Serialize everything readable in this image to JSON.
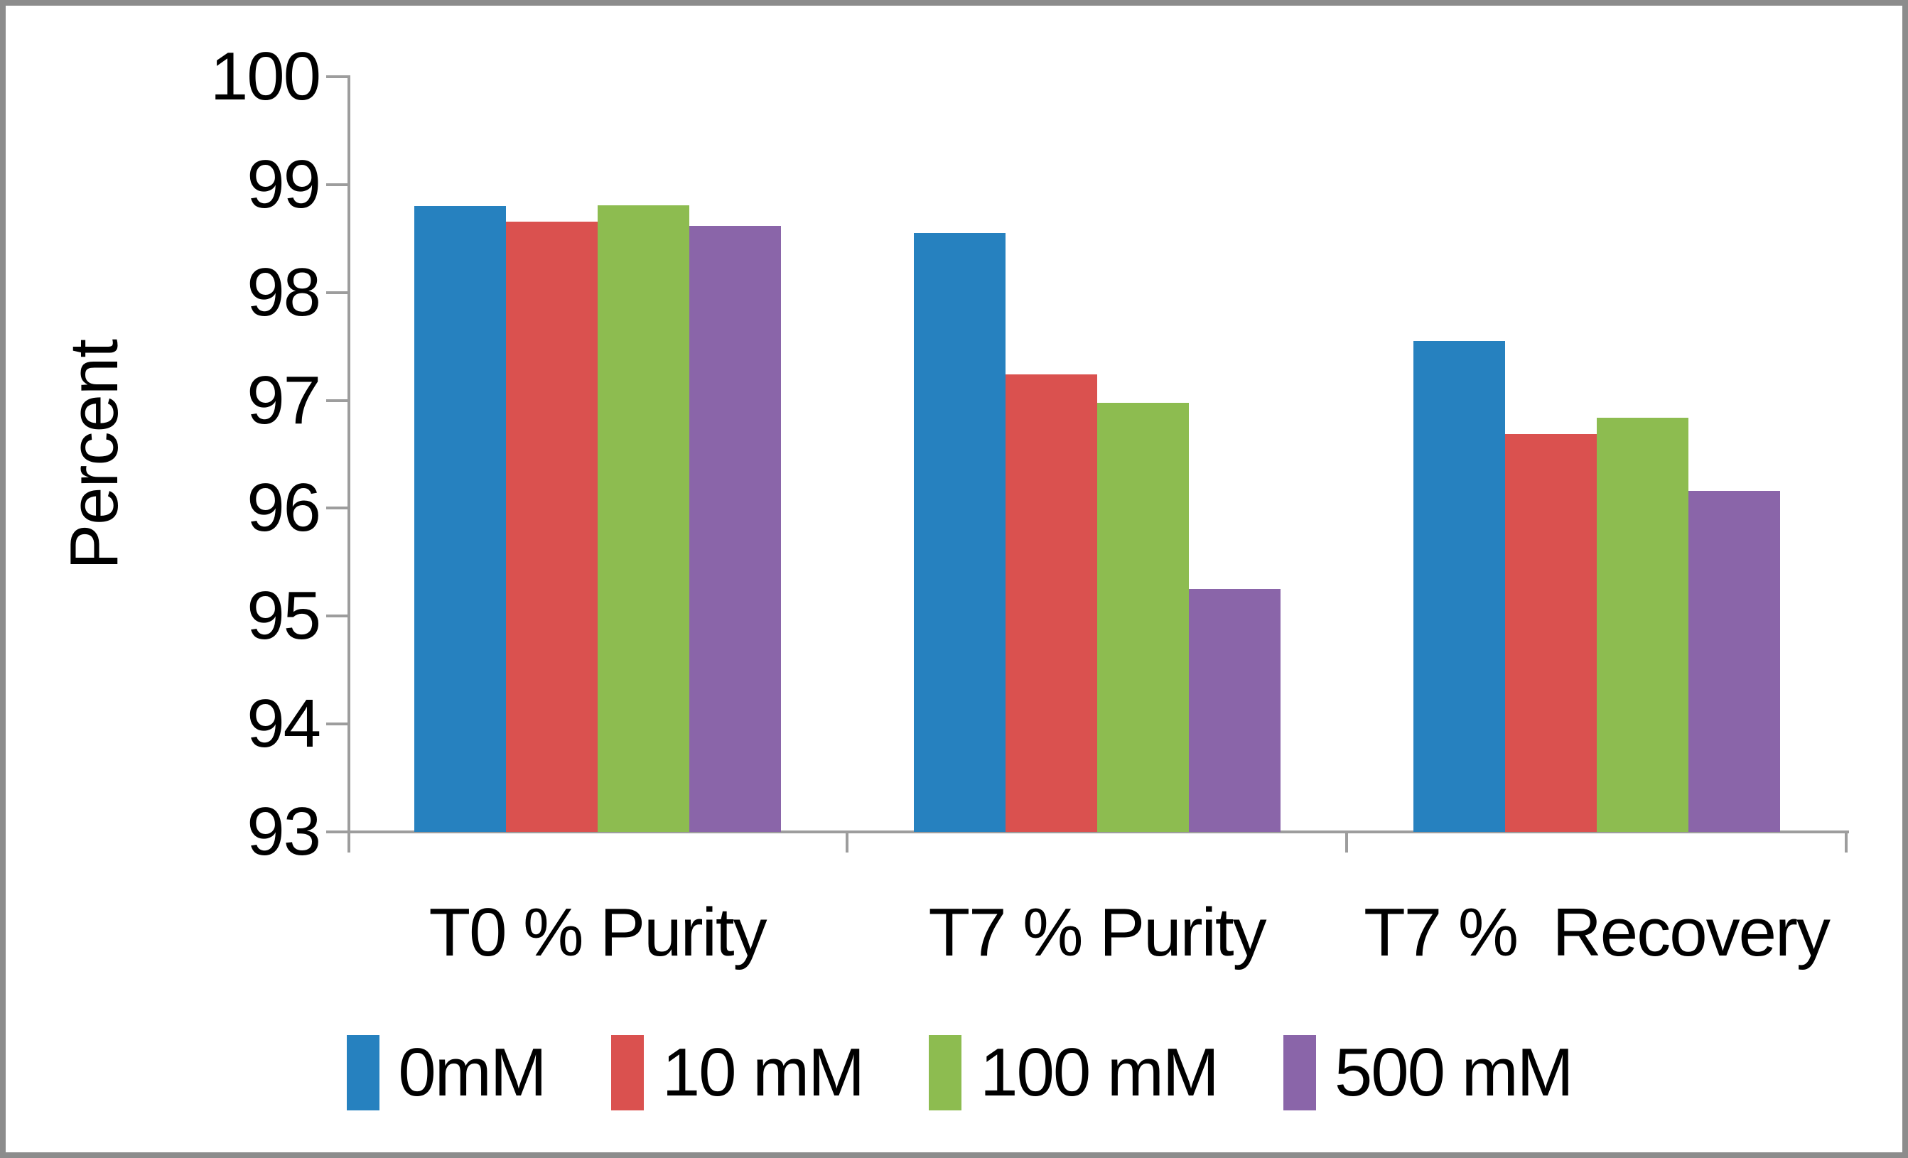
{
  "chart_data": {
    "type": "bar",
    "title": "",
    "ylabel": "Percent",
    "xlabel": "",
    "categories": [
      "T0 % Purity",
      "T7 % Purity",
      "T7 %  Recovery"
    ],
    "series": [
      {
        "name": "0mM",
        "color": "#2681bf",
        "values": [
          98.8,
          98.55,
          97.55
        ]
      },
      {
        "name": "10 mM",
        "color": "#da514f",
        "values": [
          98.66,
          97.24,
          96.69
        ]
      },
      {
        "name": "100 mM",
        "color": "#8dbc50",
        "values": [
          98.81,
          96.98,
          96.84
        ]
      },
      {
        "name": "500 mM",
        "color": "#8a65a9",
        "values": [
          98.62,
          95.25,
          96.16
        ]
      }
    ],
    "ylim": [
      93,
      100
    ],
    "yticks": [
      "100",
      "99",
      "98",
      "97",
      "96",
      "95",
      "94",
      "93"
    ],
    "grid": false,
    "legend_position": "bottom"
  },
  "colors": {
    "axis": "#9d9d9d",
    "frame_border": "#8c8c8c",
    "text": "#000000",
    "background": "#ffffff"
  }
}
